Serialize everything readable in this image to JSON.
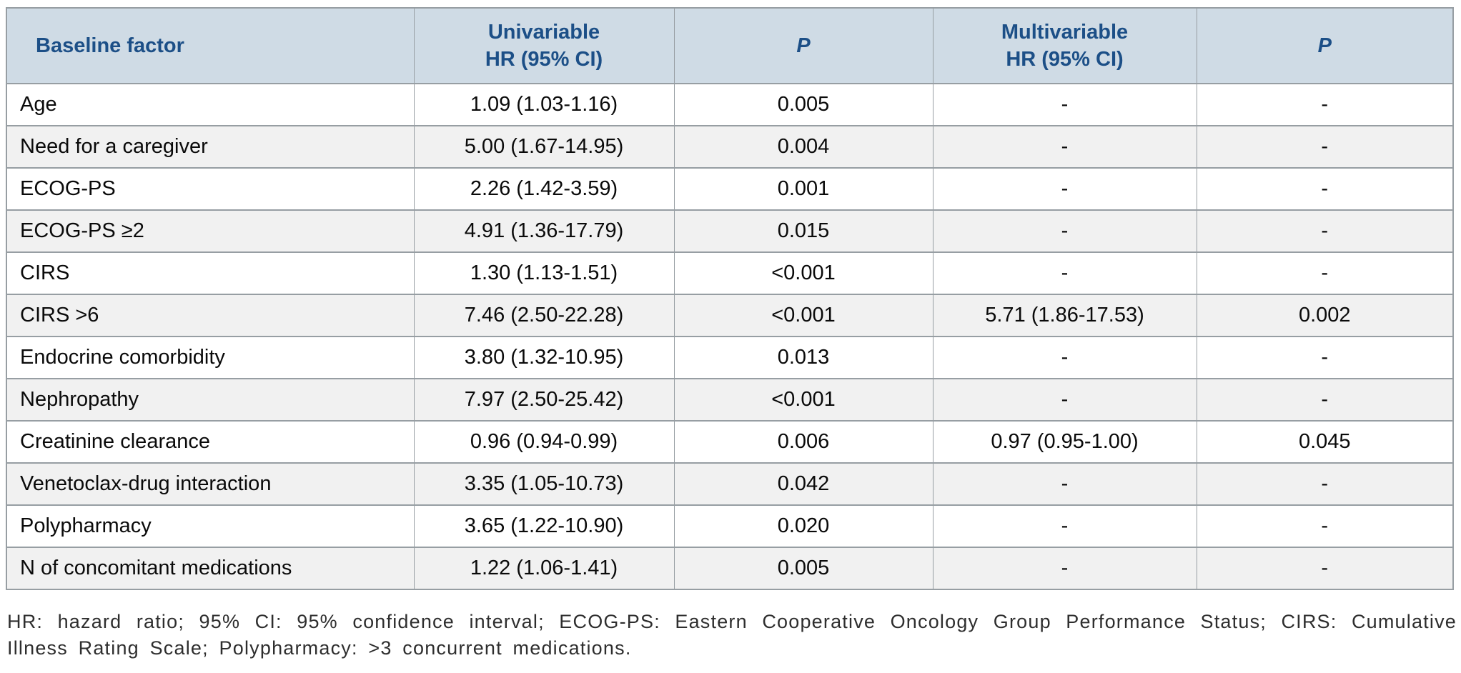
{
  "table": {
    "columns": [
      {
        "label": "Baseline factor"
      },
      {
        "label": "Univariable",
        "sublabel": "HR (95% CI)"
      },
      {
        "label": "P"
      },
      {
        "label": "Multivariable",
        "sublabel": "HR (95% CI)"
      },
      {
        "label": "P"
      }
    ],
    "rows": [
      {
        "factor": "Age",
        "univariable_hr": "1.09 (1.03-1.16)",
        "univariable_p": "0.005",
        "multivariable_hr": "-",
        "multivariable_p": "-"
      },
      {
        "factor": "Need for a caregiver",
        "univariable_hr": "5.00 (1.67-14.95)",
        "univariable_p": "0.004",
        "multivariable_hr": "-",
        "multivariable_p": "-"
      },
      {
        "factor": "ECOG-PS",
        "univariable_hr": "2.26 (1.42-3.59)",
        "univariable_p": "0.001",
        "multivariable_hr": "-",
        "multivariable_p": "-"
      },
      {
        "factor": "ECOG-PS ≥2",
        "univariable_hr": "4.91 (1.36-17.79)",
        "univariable_p": "0.015",
        "multivariable_hr": "-",
        "multivariable_p": "-"
      },
      {
        "factor": "CIRS",
        "univariable_hr": "1.30 (1.13-1.51)",
        "univariable_p": "<0.001",
        "multivariable_hr": "-",
        "multivariable_p": "-"
      },
      {
        "factor": "CIRS >6",
        "univariable_hr": "7.46 (2.50-22.28)",
        "univariable_p": "<0.001",
        "multivariable_hr": "5.71 (1.86-17.53)",
        "multivariable_p": "0.002"
      },
      {
        "factor": "Endocrine comorbidity",
        "univariable_hr": "3.80 (1.32-10.95)",
        "univariable_p": "0.013",
        "multivariable_hr": "-",
        "multivariable_p": "-"
      },
      {
        "factor": "Nephropathy",
        "univariable_hr": "7.97 (2.50-25.42)",
        "univariable_p": "<0.001",
        "multivariable_hr": "-",
        "multivariable_p": "-"
      },
      {
        "factor": "Creatinine clearance",
        "univariable_hr": "0.96 (0.94-0.99)",
        "univariable_p": "0.006",
        "multivariable_hr": "0.97 (0.95-1.00)",
        "multivariable_p": "0.045"
      },
      {
        "factor": "Venetoclax-drug interaction",
        "univariable_hr": "3.35 (1.05-10.73)",
        "univariable_p": "0.042",
        "multivariable_hr": "-",
        "multivariable_p": "-"
      },
      {
        "factor": "Polypharmacy",
        "univariable_hr": "3.65 (1.22-10.90)",
        "univariable_p": "0.020",
        "multivariable_hr": "-",
        "multivariable_p": "-"
      },
      {
        "factor": "N of concomitant medications",
        "univariable_hr": "1.22 (1.06-1.41)",
        "univariable_p": "0.005",
        "multivariable_hr": "-",
        "multivariable_p": "-"
      }
    ]
  },
  "footnote": {
    "text": "HR: hazard ratio; 95% CI: 95% confidence interval; ECOG-PS: Eastern Cooperative Oncology Group Performance Status; CIRS: Cumulative Illness Rating Scale; Polypharmacy: >3 concurrent medications."
  },
  "colors": {
    "header_bg": "#cfdbe5",
    "header_text": "#1c4f87",
    "alt_row_bg": "#f1f1f1",
    "border": "#979ea3"
  }
}
